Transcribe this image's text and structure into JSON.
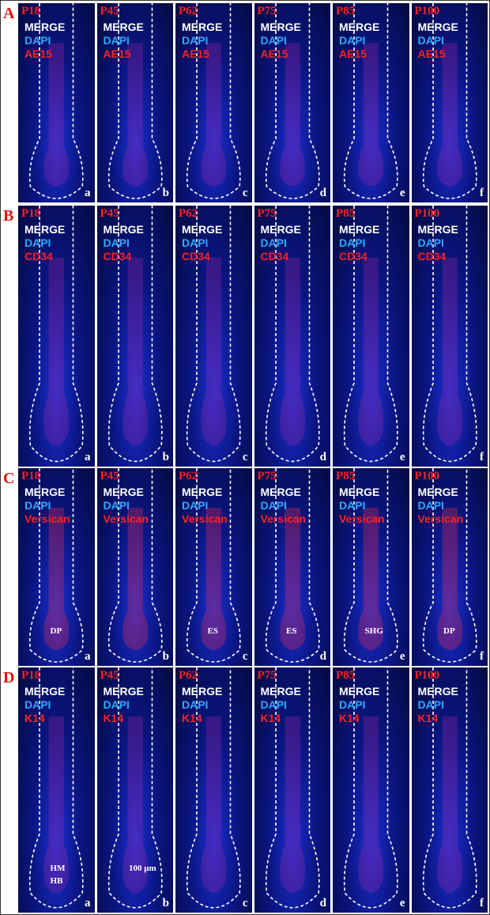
{
  "figure": {
    "rows": [
      {
        "label": "A",
        "panels": [
          {
            "age": "P18",
            "channels": [
              "MERGE",
              "DAPI",
              "AE15"
            ],
            "letter": "a",
            "annotations": []
          },
          {
            "age": "P45",
            "channels": [
              "MERGE",
              "DAPI",
              "AE15"
            ],
            "letter": "b",
            "annotations": []
          },
          {
            "age": "P62",
            "channels": [
              "MERGE",
              "DAPI",
              "AE15"
            ],
            "letter": "c",
            "annotations": []
          },
          {
            "age": "P75",
            "channels": [
              "MERGE",
              "DAPI",
              "AE15"
            ],
            "letter": "d",
            "annotations": []
          },
          {
            "age": "P85",
            "channels": [
              "MERGE",
              "DAPI",
              "AE15"
            ],
            "letter": "e",
            "annotations": []
          },
          {
            "age": "P100",
            "channels": [
              "MERGE",
              "DAPI",
              "AE15"
            ],
            "letter": "f",
            "annotations": []
          }
        ]
      },
      {
        "label": "B",
        "panels": [
          {
            "age": "P18",
            "channels": [
              "MERGE",
              "DAPI",
              "CD34"
            ],
            "letter": "a",
            "annotations": []
          },
          {
            "age": "P45",
            "channels": [
              "MERGE",
              "DAPI",
              "CD34"
            ],
            "letter": "b",
            "annotations": []
          },
          {
            "age": "P62",
            "channels": [
              "MERGE",
              "DAPI",
              "CD34"
            ],
            "letter": "c",
            "annotations": []
          },
          {
            "age": "P75",
            "channels": [
              "MERGE",
              "DAPI",
              "CD34"
            ],
            "letter": "d",
            "annotations": []
          },
          {
            "age": "P85",
            "channels": [
              "MERGE",
              "DAPI",
              "CD34"
            ],
            "letter": "e",
            "annotations": []
          },
          {
            "age": "P100",
            "channels": [
              "MERGE",
              "DAPI",
              "CD34"
            ],
            "letter": "f",
            "annotations": []
          }
        ]
      },
      {
        "label": "C",
        "panels": [
          {
            "age": "P18",
            "channels": [
              "MERGE",
              "DAPI",
              "Versican"
            ],
            "letter": "a",
            "annotations": [
              "DP"
            ]
          },
          {
            "age": "P45",
            "channels": [
              "MERGE",
              "DAPI",
              "Versican"
            ],
            "letter": "b",
            "annotations": []
          },
          {
            "age": "P62",
            "channels": [
              "MERGE",
              "DAPI",
              "Versican"
            ],
            "letter": "c",
            "annotations": [
              "ES"
            ]
          },
          {
            "age": "P75",
            "channels": [
              "MERGE",
              "DAPI",
              "Versican"
            ],
            "letter": "d",
            "annotations": [
              "ES"
            ]
          },
          {
            "age": "P85",
            "channels": [
              "MERGE",
              "DAPI",
              "Versican"
            ],
            "letter": "e",
            "annotations": [
              "SHG"
            ]
          },
          {
            "age": "P100",
            "channels": [
              "MERGE",
              "DAPI",
              "Versican"
            ],
            "letter": "f",
            "annotations": [
              "DP"
            ]
          }
        ]
      },
      {
        "label": "D",
        "panels": [
          {
            "age": "P18",
            "channels": [
              "MERGE",
              "DAPI",
              "K14"
            ],
            "letter": "a",
            "annotations": [
              "HM",
              "HB"
            ]
          },
          {
            "age": "P45",
            "channels": [
              "MERGE",
              "DAPI",
              "K14"
            ],
            "letter": "b",
            "annotations": [
              "100 μm"
            ]
          },
          {
            "age": "P62",
            "channels": [
              "MERGE",
              "DAPI",
              "K14"
            ],
            "letter": "c",
            "annotations": []
          },
          {
            "age": "P75",
            "channels": [
              "MERGE",
              "DAPI",
              "K14"
            ],
            "letter": "d",
            "annotations": []
          },
          {
            "age": "P85",
            "channels": [
              "MERGE",
              "DAPI",
              "K14"
            ],
            "letter": "e",
            "annotations": []
          },
          {
            "age": "P100",
            "channels": [
              "MERGE",
              "DAPI",
              "K14"
            ],
            "letter": "f",
            "annotations": []
          }
        ]
      }
    ]
  }
}
